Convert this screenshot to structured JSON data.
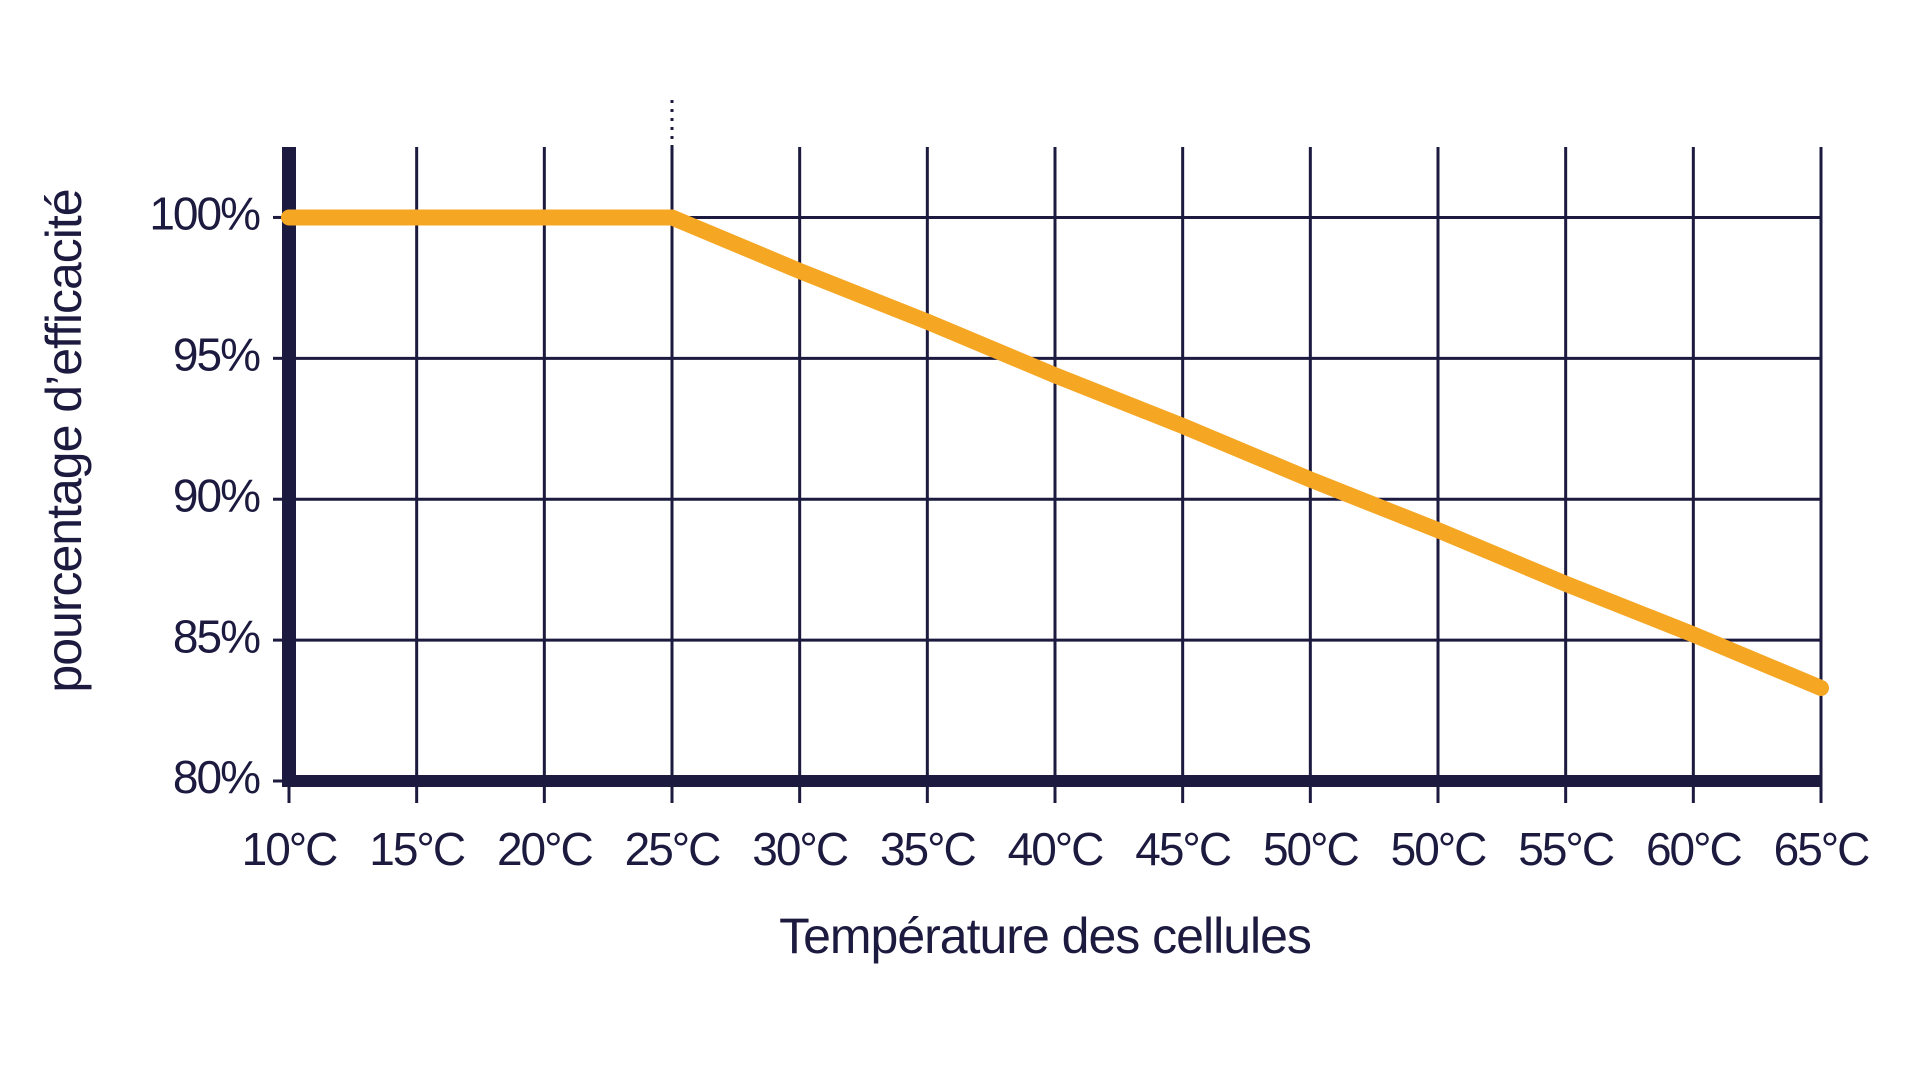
{
  "chart_data": {
    "type": "line",
    "x_label": "Température des cellules",
    "y_label": "pourcentage d’efficacité",
    "categories": [
      "10°C",
      "15°C",
      "20°C",
      "25°C",
      "30°C",
      "35°C",
      "40°C",
      "45°C",
      "50°C",
      "50°C",
      "55°C",
      "60°C",
      "65°C"
    ],
    "series": [
      {
        "color": "#f5a623",
        "values": [
          100,
          100,
          100,
          100,
          98.1,
          96.3,
          94.4,
          92.6,
          90.7,
          88.9,
          87.0,
          85.2,
          83.3
        ]
      }
    ],
    "ylim": [
      80,
      102.5
    ],
    "yticks": [
      {
        "value": 80,
        "label": "80%"
      },
      {
        "value": 85,
        "label": "85%"
      },
      {
        "value": 90,
        "label": "90%"
      },
      {
        "value": 95,
        "label": "95%"
      },
      {
        "value": 100,
        "label": "100%"
      }
    ],
    "grid": true
  }
}
